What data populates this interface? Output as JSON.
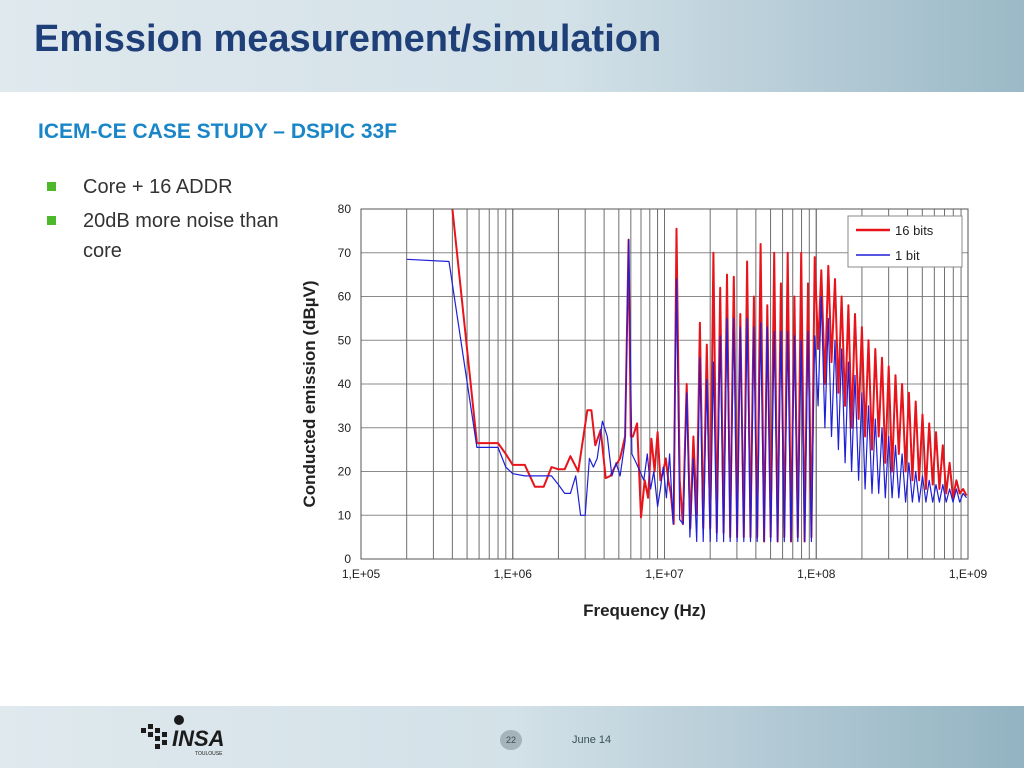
{
  "slide": {
    "title": "Emission measurement/simulation",
    "subtitle": "ICEM-CE CASE STUDY – DSPIC 33F",
    "bullets": [
      {
        "text": "Core + 16 ADDR"
      },
      {
        "text": "20dB more noise than core"
      }
    ],
    "footer": {
      "logo_text": "INSA",
      "logo_subtext": "TOULOUSE",
      "page_number": "22",
      "date": "June 14"
    }
  },
  "colors": {
    "title": "#1f3f78",
    "subtitle": "#1a86c8",
    "bullet_marker": "#4db82a",
    "series_16bits": "#e8141b",
    "series_1bit": "#1f1fd8"
  },
  "chart_data": {
    "type": "line",
    "title": "",
    "xlabel": "Frequency (Hz)",
    "ylabel": "Conducted emission (dBµV)",
    "x_scale": "log",
    "xlim": [
      100000,
      1000000000
    ],
    "ylim": [
      0,
      80
    ],
    "x_ticks": [
      {
        "value": 100000,
        "label": "1,E+05"
      },
      {
        "value": 1000000,
        "label": "1,E+06"
      },
      {
        "value": 10000000,
        "label": "1,E+07"
      },
      {
        "value": 100000000,
        "label": "1,E+08"
      },
      {
        "value": 1000000000,
        "label": "1,E+09"
      }
    ],
    "y_ticks": [
      0,
      10,
      20,
      30,
      40,
      50,
      60,
      70,
      80
    ],
    "grid": true,
    "legend_position": "top-right",
    "series": [
      {
        "name": "16 bits",
        "color": "#e8141b",
        "points": [
          [
            400000,
            80
          ],
          [
            580000,
            26.5
          ],
          [
            600000,
            26.5
          ],
          [
            700000,
            26.5
          ],
          [
            800000,
            26.5
          ],
          [
            900000,
            24
          ],
          [
            1000000,
            21.5
          ],
          [
            1100000,
            21.5
          ],
          [
            1200000,
            21.5
          ],
          [
            1400000,
            16.5
          ],
          [
            1600000,
            16.5
          ],
          [
            1800000,
            21
          ],
          [
            2000000,
            20.5
          ],
          [
            2200000,
            20.5
          ],
          [
            2400000,
            23.5
          ],
          [
            2700000,
            20
          ],
          [
            3100000,
            34
          ],
          [
            3300000,
            34
          ],
          [
            3500000,
            26
          ],
          [
            3800000,
            29.5
          ],
          [
            4100000,
            18.5
          ],
          [
            4400000,
            19
          ],
          [
            4700000,
            21
          ],
          [
            5100000,
            23
          ],
          [
            5500000,
            28
          ],
          [
            5800000,
            73
          ],
          [
            6000000,
            28
          ],
          [
            6200000,
            28
          ],
          [
            6600000,
            31
          ],
          [
            7000000,
            9.5
          ],
          [
            7400000,
            18
          ],
          [
            7800000,
            14
          ],
          [
            8200000,
            27.5
          ],
          [
            8600000,
            20
          ],
          [
            9000000,
            29
          ],
          [
            9400000,
            18
          ],
          [
            9800000,
            20
          ],
          [
            10200000,
            23
          ],
          [
            10600000,
            18
          ],
          [
            11000000,
            15
          ],
          [
            11500000,
            8
          ],
          [
            12000000,
            75.5
          ],
          [
            12600000,
            18
          ],
          [
            13200000,
            8
          ],
          [
            14000000,
            40
          ],
          [
            14800000,
            7
          ],
          [
            15500000,
            28
          ],
          [
            16300000,
            10
          ],
          [
            17100000,
            54
          ],
          [
            18000000,
            7
          ],
          [
            19000000,
            49
          ],
          [
            20000000,
            7
          ],
          [
            21000000,
            70
          ],
          [
            22100000,
            6
          ],
          [
            23300000,
            62
          ],
          [
            24500000,
            6
          ],
          [
            25800000,
            65
          ],
          [
            27100000,
            5
          ],
          [
            28600000,
            64.5
          ],
          [
            30100000,
            5
          ],
          [
            31600000,
            56
          ],
          [
            33300000,
            5
          ],
          [
            35000000,
            68
          ],
          [
            36900000,
            5
          ],
          [
            38800000,
            60
          ],
          [
            40800000,
            5
          ],
          [
            43000000,
            72
          ],
          [
            45300000,
            4
          ],
          [
            47600000,
            58
          ],
          [
            50100000,
            5
          ],
          [
            52800000,
            70
          ],
          [
            55600000,
            4
          ],
          [
            58500000,
            63
          ],
          [
            61600000,
            5
          ],
          [
            64800000,
            70
          ],
          [
            68200000,
            4
          ],
          [
            71800000,
            60
          ],
          [
            75600000,
            5
          ],
          [
            79600000,
            70
          ],
          [
            83800000,
            4
          ],
          [
            88200000,
            63
          ],
          [
            92900000,
            5
          ],
          [
            97700000,
            69
          ],
          [
            102800000,
            48
          ],
          [
            108000000,
            66
          ],
          [
            114000000,
            40
          ],
          [
            120000000,
            67
          ],
          [
            126000000,
            45
          ],
          [
            133000000,
            64
          ],
          [
            140000000,
            38
          ],
          [
            147000000,
            60
          ],
          [
            155000000,
            35
          ],
          [
            163000000,
            58
          ],
          [
            171000000,
            30
          ],
          [
            180000000,
            56
          ],
          [
            190000000,
            32
          ],
          [
            200000000,
            53
          ],
          [
            210000000,
            28
          ],
          [
            221000000,
            50
          ],
          [
            233000000,
            25
          ],
          [
            245000000,
            48
          ],
          [
            258000000,
            28
          ],
          [
            271000000,
            46
          ],
          [
            285000000,
            22
          ],
          [
            300000000,
            44
          ],
          [
            316000000,
            20
          ],
          [
            333000000,
            42
          ],
          [
            350000000,
            24
          ],
          [
            368000000,
            40
          ],
          [
            388000000,
            20
          ],
          [
            408000000,
            38
          ],
          [
            430000000,
            18
          ],
          [
            452000000,
            36
          ],
          [
            476000000,
            18
          ],
          [
            501000000,
            33
          ],
          [
            528000000,
            16
          ],
          [
            555000000,
            31
          ],
          [
            585000000,
            17
          ],
          [
            615000000,
            29
          ],
          [
            648000000,
            16
          ],
          [
            682000000,
            26
          ],
          [
            718000000,
            15
          ],
          [
            756000000,
            22
          ],
          [
            796000000,
            14
          ],
          [
            838000000,
            18
          ],
          [
            882000000,
            15
          ],
          [
            929000000,
            16
          ],
          [
            978000000,
            14.5
          ]
        ]
      },
      {
        "name": "1 bit",
        "color": "#1f1fd8",
        "points": [
          [
            200000,
            68.5
          ],
          [
            380000,
            68
          ],
          [
            580000,
            25.5
          ],
          [
            700000,
            25.5
          ],
          [
            800000,
            25.5
          ],
          [
            900000,
            21
          ],
          [
            1000000,
            19.5
          ],
          [
            1200000,
            19
          ],
          [
            1400000,
            19
          ],
          [
            1600000,
            19
          ],
          [
            1800000,
            19
          ],
          [
            2000000,
            17
          ],
          [
            2200000,
            15
          ],
          [
            2400000,
            15
          ],
          [
            2600000,
            19
          ],
          [
            2800000,
            10
          ],
          [
            3000000,
            10
          ],
          [
            3200000,
            23
          ],
          [
            3400000,
            21
          ],
          [
            3600000,
            23
          ],
          [
            3900000,
            31.5
          ],
          [
            4200000,
            28
          ],
          [
            4500000,
            19
          ],
          [
            4800000,
            22
          ],
          [
            5100000,
            19
          ],
          [
            5500000,
            27
          ],
          [
            5800000,
            73
          ],
          [
            6100000,
            24
          ],
          [
            6500000,
            22
          ],
          [
            6900000,
            20
          ],
          [
            7300000,
            18
          ],
          [
            7700000,
            24
          ],
          [
            8100000,
            16
          ],
          [
            8500000,
            20
          ],
          [
            9000000,
            12
          ],
          [
            9400000,
            16
          ],
          [
            9800000,
            21
          ],
          [
            10300000,
            14
          ],
          [
            10800000,
            24
          ],
          [
            11400000,
            8
          ],
          [
            12000000,
            64
          ],
          [
            12600000,
            9
          ],
          [
            13300000,
            8
          ],
          [
            14000000,
            38
          ],
          [
            14700000,
            5
          ],
          [
            15500000,
            23
          ],
          [
            16300000,
            4
          ],
          [
            17100000,
            46
          ],
          [
            18000000,
            4
          ],
          [
            19000000,
            41
          ],
          [
            20000000,
            4
          ],
          [
            21000000,
            45
          ],
          [
            22100000,
            4
          ],
          [
            23300000,
            51
          ],
          [
            24500000,
            4
          ],
          [
            25800000,
            55
          ],
          [
            27100000,
            4
          ],
          [
            28600000,
            55
          ],
          [
            30100000,
            4
          ],
          [
            31600000,
            53
          ],
          [
            33300000,
            4
          ],
          [
            35000000,
            55
          ],
          [
            36900000,
            4
          ],
          [
            38800000,
            53
          ],
          [
            40800000,
            4
          ],
          [
            43000000,
            54
          ],
          [
            45300000,
            4
          ],
          [
            47600000,
            53
          ],
          [
            50100000,
            4
          ],
          [
            52800000,
            52
          ],
          [
            55600000,
            4
          ],
          [
            58500000,
            52
          ],
          [
            61600000,
            4
          ],
          [
            64800000,
            52
          ],
          [
            68200000,
            4
          ],
          [
            71800000,
            51
          ],
          [
            75600000,
            4
          ],
          [
            79600000,
            50
          ],
          [
            83800000,
            4
          ],
          [
            88200000,
            52
          ],
          [
            92900000,
            4
          ],
          [
            97700000,
            51
          ],
          [
            102800000,
            35
          ],
          [
            108000000,
            60
          ],
          [
            114000000,
            30
          ],
          [
            120000000,
            55
          ],
          [
            126000000,
            28
          ],
          [
            133000000,
            50
          ],
          [
            140000000,
            25
          ],
          [
            147000000,
            48
          ],
          [
            155000000,
            22
          ],
          [
            163000000,
            45
          ],
          [
            171000000,
            20
          ],
          [
            180000000,
            42
          ],
          [
            190000000,
            18
          ],
          [
            200000000,
            38
          ],
          [
            210000000,
            16
          ],
          [
            221000000,
            35
          ],
          [
            233000000,
            15
          ],
          [
            245000000,
            32
          ],
          [
            258000000,
            15
          ],
          [
            271000000,
            30
          ],
          [
            285000000,
            14
          ],
          [
            300000000,
            28
          ],
          [
            316000000,
            14
          ],
          [
            333000000,
            26
          ],
          [
            350000000,
            14
          ],
          [
            368000000,
            24
          ],
          [
            388000000,
            13
          ],
          [
            408000000,
            22
          ],
          [
            430000000,
            13
          ],
          [
            452000000,
            20
          ],
          [
            476000000,
            13
          ],
          [
            501000000,
            19
          ],
          [
            528000000,
            13
          ],
          [
            555000000,
            18
          ],
          [
            585000000,
            13
          ],
          [
            615000000,
            17
          ],
          [
            648000000,
            13
          ],
          [
            682000000,
            17
          ],
          [
            718000000,
            13
          ],
          [
            756000000,
            16
          ],
          [
            796000000,
            13
          ],
          [
            838000000,
            16
          ],
          [
            882000000,
            13
          ],
          [
            929000000,
            15
          ],
          [
            978000000,
            14
          ]
        ]
      }
    ]
  }
}
